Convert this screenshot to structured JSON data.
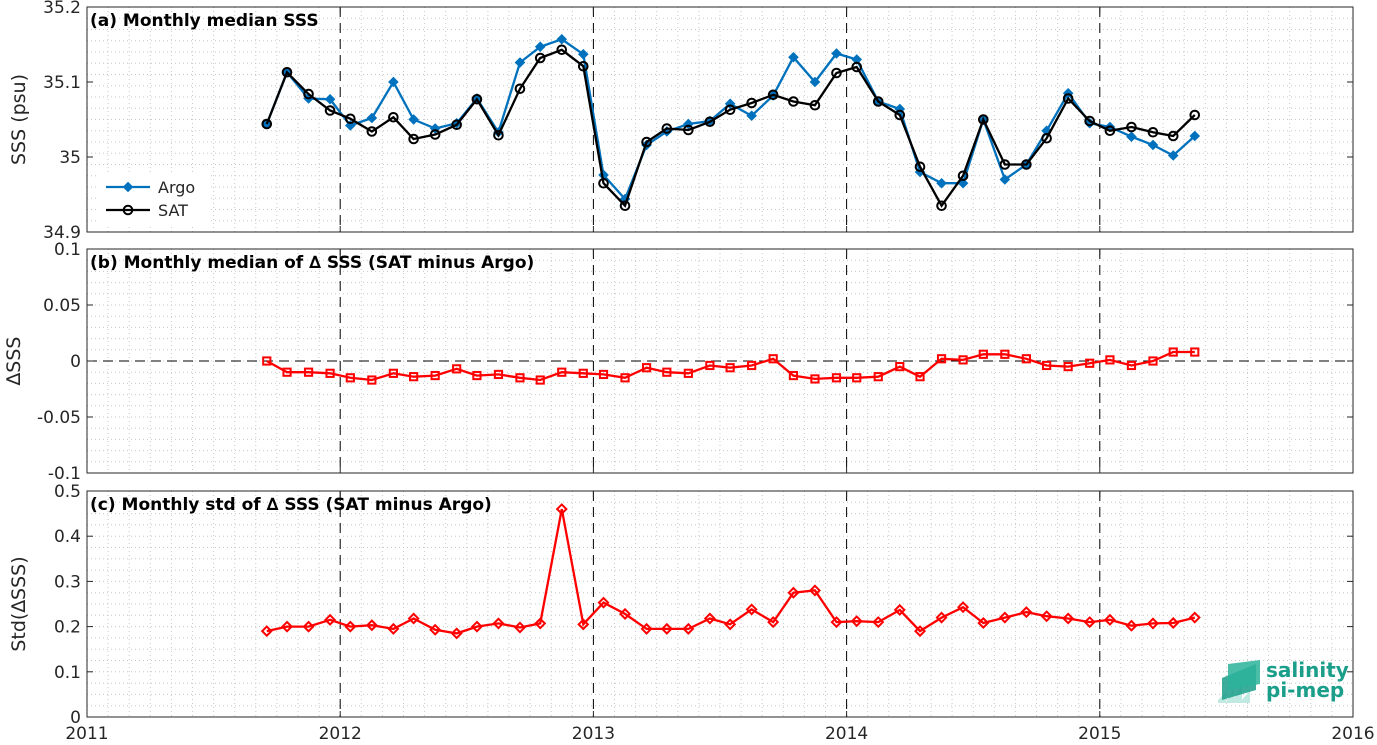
{
  "chart_data": [
    {
      "type": "line",
      "title": "(a) Monthly median SSS",
      "xlabel": "",
      "ylabel": "SSS (psu)",
      "xlim": [
        2011,
        2016
      ],
      "ylim": [
        34.9,
        35.2
      ],
      "x_ticks": [
        "2011",
        "2012",
        "2013",
        "2014",
        "2015",
        "2016"
      ],
      "y_ticks": [
        "34.9",
        "35",
        "35.1",
        "35.2"
      ],
      "grid": "dotted minor grid, dashed lines at year boundaries",
      "legend": "lower-left",
      "x": [
        2011.71,
        2011.79,
        2011.875,
        2011.96,
        2012.04,
        2012.125,
        2012.21,
        2012.29,
        2012.375,
        2012.46,
        2012.54,
        2012.625,
        2012.71,
        2012.79,
        2012.875,
        2012.96,
        2013.04,
        2013.125,
        2013.21,
        2013.29,
        2013.375,
        2013.46,
        2013.54,
        2013.625,
        2013.71,
        2013.79,
        2013.875,
        2013.96,
        2014.04,
        2014.125,
        2014.21,
        2014.29,
        2014.375,
        2014.46,
        2014.54,
        2014.625,
        2014.71,
        2014.79,
        2014.875,
        2014.96,
        2015.04,
        2015.125,
        2015.21,
        2015.29,
        2015.375
      ],
      "series": [
        {
          "name": "Argo",
          "color": "#0072bd",
          "marker": "diamond",
          "values": [
            35.044,
            35.113,
            35.078,
            35.077,
            35.042,
            35.052,
            35.1,
            35.05,
            35.038,
            35.045,
            35.078,
            35.033,
            35.126,
            35.147,
            35.157,
            35.137,
            34.976,
            34.944,
            35.016,
            35.034,
            35.044,
            35.048,
            35.071,
            35.055,
            35.082,
            35.133,
            35.1,
            35.138,
            35.13,
            35.074,
            35.064,
            34.98,
            34.965,
            34.965,
            35.05,
            34.97,
            34.99,
            35.035,
            35.085,
            35.045,
            35.04,
            35.027,
            35.016,
            35.002,
            35.028
          ]
        },
        {
          "name": "SAT",
          "color": "#000000",
          "marker": "circle",
          "values": [
            35.044,
            35.113,
            35.084,
            35.062,
            35.051,
            35.034,
            35.053,
            35.024,
            35.03,
            35.043,
            35.077,
            35.029,
            35.091,
            35.132,
            35.143,
            35.121,
            34.965,
            34.935,
            35.02,
            35.038,
            35.036,
            35.047,
            35.063,
            35.072,
            35.083,
            35.074,
            35.069,
            35.112,
            35.12,
            35.074,
            35.056,
            34.987,
            34.935,
            34.975,
            35.05,
            34.99,
            34.99,
            35.025,
            35.078,
            35.048,
            35.035,
            35.04,
            35.033,
            35.028,
            35.056
          ]
        }
      ]
    },
    {
      "type": "line",
      "title": "(b) Monthly median of ∆ SSS (SAT minus Argo)",
      "xlabel": "",
      "ylabel": "∆SSS",
      "xlim": [
        2011,
        2016
      ],
      "ylim": [
        -0.1,
        0.1
      ],
      "y_ticks": [
        "-0.1",
        "-0.05",
        "0",
        "0.05",
        "0.1"
      ],
      "grid": "dotted minor grid, dashed zero line",
      "x": [
        2011.71,
        2011.79,
        2011.875,
        2011.96,
        2012.04,
        2012.125,
        2012.21,
        2012.29,
        2012.375,
        2012.46,
        2012.54,
        2012.625,
        2012.71,
        2012.79,
        2012.875,
        2012.96,
        2013.04,
        2013.125,
        2013.21,
        2013.29,
        2013.375,
        2013.46,
        2013.54,
        2013.625,
        2013.71,
        2013.79,
        2013.875,
        2013.96,
        2014.04,
        2014.125,
        2014.21,
        2014.29,
        2014.375,
        2014.46,
        2014.54,
        2014.625,
        2014.71,
        2014.79,
        2014.875,
        2014.96,
        2015.04,
        2015.125,
        2015.21,
        2015.29,
        2015.375
      ],
      "series": [
        {
          "name": "",
          "color": "#ff0000",
          "marker": "square",
          "values": [
            0.0,
            -0.01,
            -0.01,
            -0.011,
            -0.015,
            -0.017,
            -0.011,
            -0.014,
            -0.013,
            -0.007,
            -0.013,
            -0.012,
            -0.015,
            -0.017,
            -0.01,
            -0.011,
            -0.012,
            -0.015,
            -0.006,
            -0.01,
            -0.011,
            -0.004,
            -0.006,
            -0.004,
            0.002,
            -0.013,
            -0.016,
            -0.015,
            -0.015,
            -0.014,
            -0.005,
            -0.014,
            0.002,
            0.001,
            0.006,
            0.006,
            0.002,
            -0.004,
            -0.005,
            -0.002,
            0.001,
            -0.004,
            0.0,
            0.008,
            0.008
          ]
        }
      ]
    },
    {
      "type": "line",
      "title": "(c) Monthly std of ∆ SSS (SAT minus Argo)",
      "xlabel": "",
      "ylabel": "Std(∆SSS)",
      "xlim": [
        2011,
        2016
      ],
      "ylim": [
        0,
        0.5
      ],
      "y_ticks": [
        "0",
        "0.1",
        "0.2",
        "0.3",
        "0.4",
        "0.5"
      ],
      "grid": "dotted minor grid",
      "x": [
        2011.71,
        2011.79,
        2011.875,
        2011.96,
        2012.04,
        2012.125,
        2012.21,
        2012.29,
        2012.375,
        2012.46,
        2012.54,
        2012.625,
        2012.71,
        2012.79,
        2012.875,
        2012.96,
        2013.04,
        2013.125,
        2013.21,
        2013.29,
        2013.375,
        2013.46,
        2013.54,
        2013.625,
        2013.71,
        2013.79,
        2013.875,
        2013.96,
        2014.04,
        2014.125,
        2014.21,
        2014.29,
        2014.375,
        2014.46,
        2014.54,
        2014.625,
        2014.71,
        2014.79,
        2014.875,
        2014.96,
        2015.04,
        2015.125,
        2015.21,
        2015.29,
        2015.375
      ],
      "series": [
        {
          "name": "",
          "color": "#ff0000",
          "marker": "diamond",
          "values": [
            0.19,
            0.2,
            0.2,
            0.215,
            0.2,
            0.203,
            0.195,
            0.218,
            0.193,
            0.185,
            0.2,
            0.207,
            0.198,
            0.207,
            0.46,
            0.205,
            0.253,
            0.228,
            0.195,
            0.195,
            0.195,
            0.218,
            0.205,
            0.238,
            0.21,
            0.275,
            0.28,
            0.21,
            0.212,
            0.21,
            0.237,
            0.19,
            0.22,
            0.243,
            0.208,
            0.22,
            0.232,
            0.223,
            0.218,
            0.21,
            0.215,
            0.202,
            0.207,
            0.208,
            0.22
          ]
        }
      ]
    }
  ],
  "logo": {
    "line1": "salinity",
    "line2": "pi-mep",
    "color_primary": "#1a9e8a",
    "color_secondary": "#7fd3c4"
  }
}
